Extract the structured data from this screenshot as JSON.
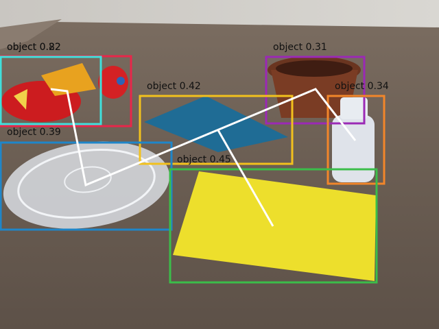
{
  "detections": [
    {
      "id": "red-dragon-plush",
      "label": "object 0.22",
      "color": "#e8264a"
    },
    {
      "id": "dragon-inner",
      "label": "object 0.82",
      "color": "#3fe0dc"
    },
    {
      "id": "cupcake-liner",
      "label": "object 0.31",
      "color": "#9b29b5"
    },
    {
      "id": "blue-notebook",
      "label": "object 0.42",
      "color": "#f2c11d"
    },
    {
      "id": "plastic-bottle",
      "label": "object 0.34",
      "color": "#f2862a"
    },
    {
      "id": "clear-lid",
      "label": "object 0.39",
      "color": "#1f86c9"
    },
    {
      "id": "yellow-cloth",
      "label": "object 0.45",
      "color": "#3bbd4a"
    }
  ],
  "path_color": "#ffffff"
}
